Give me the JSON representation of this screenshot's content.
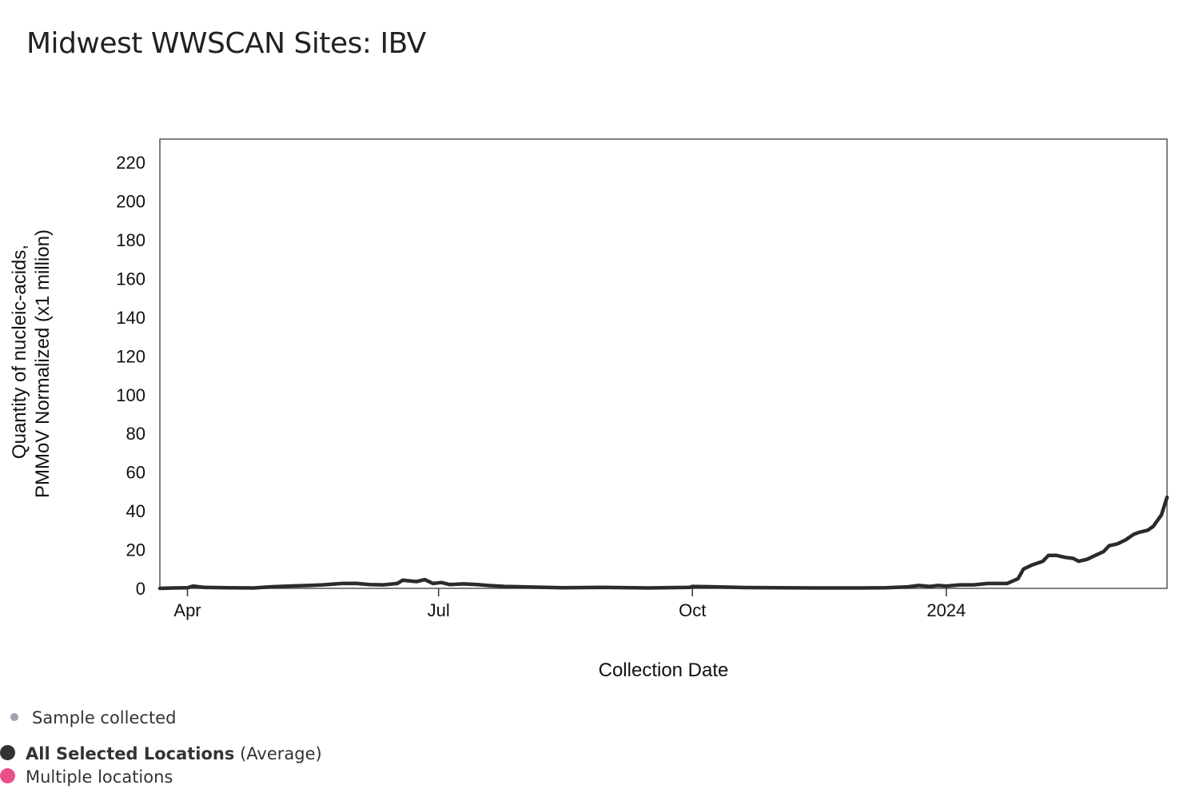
{
  "title": "Midwest WWSCAN Sites: IBV",
  "legend": {
    "sample_collected": "Sample collected",
    "average_label_bold": "All Selected Locations",
    "average_label_suffix": " (Average)",
    "multiple_locations": "Multiple locations",
    "colors": {
      "sample": "#a0a0b0",
      "average": "#333333",
      "multiple": "#e8508a"
    }
  },
  "chart_data": {
    "type": "line",
    "title": "Midwest WWSCAN Sites: IBV",
    "xlabel": "Collection Date",
    "ylabel_line1": "Quantity of nucleic-acids,",
    "ylabel_line2": "PMMoV Normalized (x1 million)",
    "ylim": [
      0,
      232
    ],
    "yticks": [
      0,
      20,
      40,
      60,
      80,
      100,
      120,
      140,
      160,
      180,
      200,
      220
    ],
    "xlim": [
      "2023-03-22",
      "2024-03-21"
    ],
    "xticks": [
      {
        "label": "Apr",
        "date": "2023-04-01"
      },
      {
        "label": "Jul",
        "date": "2023-07-01"
      },
      {
        "label": "Oct",
        "date": "2023-10-01"
      },
      {
        "label": "2024",
        "date": "2024-01-01"
      }
    ],
    "line_color": "#2b2b2b",
    "series": [
      {
        "name": "All Selected Locations (Average)",
        "points": [
          [
            "2023-03-22",
            0.0
          ],
          [
            "2023-03-27",
            0.2
          ],
          [
            "2023-04-01",
            0.3
          ],
          [
            "2023-04-03",
            1.2
          ],
          [
            "2023-04-07",
            0.5
          ],
          [
            "2023-04-15",
            0.3
          ],
          [
            "2023-04-25",
            0.2
          ],
          [
            "2023-05-01",
            0.8
          ],
          [
            "2023-05-08",
            1.2
          ],
          [
            "2023-05-15",
            1.5
          ],
          [
            "2023-05-20",
            1.8
          ],
          [
            "2023-05-27",
            2.5
          ],
          [
            "2023-06-01",
            2.6
          ],
          [
            "2023-06-06",
            2.0
          ],
          [
            "2023-06-11",
            1.8
          ],
          [
            "2023-06-16",
            2.5
          ],
          [
            "2023-06-18",
            4.2
          ],
          [
            "2023-06-23",
            3.5
          ],
          [
            "2023-06-26",
            4.5
          ],
          [
            "2023-06-29",
            2.5
          ],
          [
            "2023-07-02",
            3.0
          ],
          [
            "2023-07-05",
            2.0
          ],
          [
            "2023-07-10",
            2.3
          ],
          [
            "2023-07-15",
            2.0
          ],
          [
            "2023-07-19",
            1.5
          ],
          [
            "2023-07-25",
            1.0
          ],
          [
            "2023-08-01",
            0.8
          ],
          [
            "2023-08-15",
            0.3
          ],
          [
            "2023-08-30",
            0.5
          ],
          [
            "2023-09-15",
            0.2
          ],
          [
            "2023-09-30",
            0.5
          ],
          [
            "2023-10-01",
            1.0
          ],
          [
            "2023-10-10",
            0.8
          ],
          [
            "2023-10-20",
            0.4
          ],
          [
            "2023-11-01",
            0.3
          ],
          [
            "2023-11-15",
            0.2
          ],
          [
            "2023-12-01",
            0.2
          ],
          [
            "2023-12-10",
            0.3
          ],
          [
            "2023-12-18",
            0.8
          ],
          [
            "2023-12-22",
            1.5
          ],
          [
            "2023-12-26",
            1.0
          ],
          [
            "2023-12-29",
            1.5
          ],
          [
            "2024-01-01",
            1.2
          ],
          [
            "2024-01-06",
            1.8
          ],
          [
            "2024-01-11",
            1.8
          ],
          [
            "2024-01-16",
            2.5
          ],
          [
            "2024-01-19",
            2.5
          ],
          [
            "2024-01-23",
            2.5
          ],
          [
            "2024-01-27",
            5.0
          ],
          [
            "2024-01-29",
            10.0
          ],
          [
            "2024-02-01",
            12.0
          ],
          [
            "2024-02-05",
            14.0
          ],
          [
            "2024-02-07",
            17.0
          ],
          [
            "2024-02-10",
            17.0
          ],
          [
            "2024-02-13",
            16.0
          ],
          [
            "2024-02-16",
            15.5
          ],
          [
            "2024-02-18",
            14.0
          ],
          [
            "2024-02-21",
            15.0
          ],
          [
            "2024-02-24",
            17.0
          ],
          [
            "2024-02-27",
            19.0
          ],
          [
            "2024-02-29",
            22.0
          ],
          [
            "2024-03-03",
            23.0
          ],
          [
            "2024-03-06",
            25.0
          ],
          [
            "2024-03-09",
            28.0
          ],
          [
            "2024-03-11",
            29.0
          ],
          [
            "2024-03-14",
            30.0
          ],
          [
            "2024-03-16",
            32.0
          ],
          [
            "2024-03-19",
            38.0
          ],
          [
            "2024-03-21",
            47.0
          ]
        ]
      }
    ]
  }
}
